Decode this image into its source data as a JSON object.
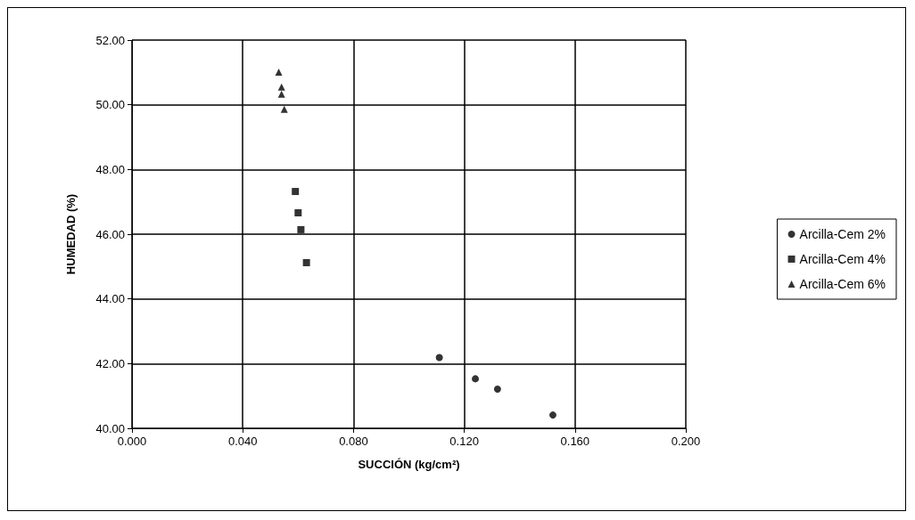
{
  "chart_data": {
    "type": "scatter",
    "xlabel": "SUCCIÓN (kg/cm²)",
    "ylabel": "HUMEDAD (%)",
    "xlim": [
      0,
      0.2
    ],
    "xticks": [
      {
        "value": 0,
        "label": "0.000"
      },
      {
        "value": 0.04,
        "label": "0.040"
      },
      {
        "value": 0.08,
        "label": "0.080"
      },
      {
        "value": 0.12,
        "label": "0.120"
      },
      {
        "value": 0.16,
        "label": "0.160"
      },
      {
        "value": 0.2,
        "label": "0.200"
      }
    ],
    "ylim": [
      40,
      52
    ],
    "yticks": [
      {
        "value": 40,
        "label": "40.00"
      },
      {
        "value": 42,
        "label": "42.00"
      },
      {
        "value": 44,
        "label": "44.00"
      },
      {
        "value": 46,
        "label": "46.00"
      },
      {
        "value": 48,
        "label": "48.00"
      },
      {
        "value": 50,
        "label": "50.00"
      },
      {
        "value": 52,
        "label": "52.00"
      }
    ],
    "grid": true,
    "legend": "right",
    "series": [
      {
        "name": "Arcilla-Cem 2%",
        "color": "#000000",
        "marker": "circle",
        "x": [
          0.111,
          0.124,
          0.132,
          0.152
        ],
        "values": [
          42.19,
          41.53,
          41.21,
          40.41
        ]
      },
      {
        "name": "Arcilla-Cem 4%",
        "color": "#000000",
        "marker": "square",
        "x": [
          0.059,
          0.06,
          0.061,
          0.063
        ],
        "values": [
          47.32,
          46.66,
          46.14,
          45.12
        ]
      },
      {
        "name": "Arcilla-Cem 6%",
        "color": "#000000",
        "marker": "triangle",
        "x": [
          0.053,
          0.054,
          0.054,
          0.055
        ],
        "values": [
          51.01,
          50.55,
          50.33,
          49.86
        ]
      }
    ]
  }
}
